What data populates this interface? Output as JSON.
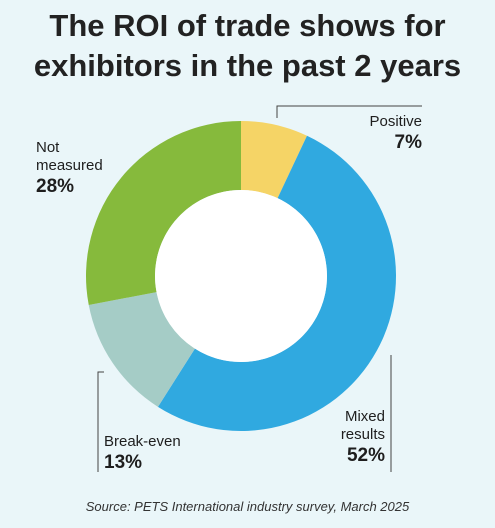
{
  "title": {
    "line1": "The ROI of trade shows for",
    "line2": "exhibitors in the past 2 years"
  },
  "source": "Source: PETS International industry survey, March 2025",
  "colors": {
    "positive": "#f5d466",
    "mixed": "#30a9e0",
    "break_even": "#a5ccc6",
    "not_measured": "#86ba3c",
    "background": "#eaf6f9",
    "leader": "#444444"
  },
  "chart_data": {
    "type": "pie",
    "style": "donut",
    "categories": [
      "Positive",
      "Mixed results",
      "Break-even",
      "Not measured"
    ],
    "values": [
      7,
      52,
      13,
      28
    ],
    "unit": "%",
    "labels": {
      "positive": {
        "name": [
          "Positive"
        ],
        "value": "7%"
      },
      "mixed": {
        "name": [
          "Mixed",
          "results"
        ],
        "value": "52%"
      },
      "break_even": {
        "name": [
          "Break-even"
        ],
        "value": "13%"
      },
      "not_measured": {
        "name": [
          "Not",
          "measured"
        ],
        "value": "28%"
      }
    }
  }
}
